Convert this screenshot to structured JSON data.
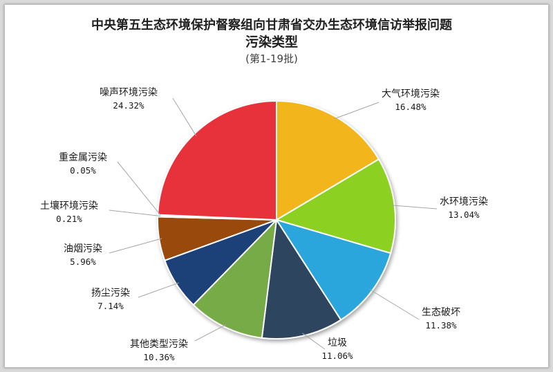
{
  "chart_data": {
    "type": "pie",
    "title": "中央第五生态环境保护督察组向甘肃省交办生态环境信访举报问题",
    "subtitle": "污染类型",
    "batch": "(第1-19批)",
    "slices": [
      {
        "name": "大气环境污染",
        "value": 16.48,
        "label": "16.48%",
        "color": "#f2b51c"
      },
      {
        "name": "水环境污染",
        "value": 13.04,
        "label": "13.04%",
        "color": "#8cd123"
      },
      {
        "name": "生态破坏",
        "value": 11.38,
        "label": "11.38%",
        "color": "#2aa6dc"
      },
      {
        "name": "垃圾",
        "value": 11.06,
        "label": "11.06%",
        "color": "#2d4560"
      },
      {
        "name": "其他类型污染",
        "value": 10.36,
        "label": "10.36%",
        "color": "#77ab46"
      },
      {
        "name": "扬尘污染",
        "value": 7.14,
        "label": "7.14%",
        "color": "#1f3f78"
      },
      {
        "name": "油烟污染",
        "value": 5.96,
        "label": "5.96%",
        "color": "#9a4a0c"
      },
      {
        "name": "土壤环境污染",
        "value": 0.21,
        "label": "0.21%",
        "color": "#d2d2d2"
      },
      {
        "name": "重金属污染",
        "value": 0.05,
        "label": "0.05%",
        "color": "#6a2a8a"
      },
      {
        "name": "噪声环境污染",
        "value": 24.32,
        "label": "24.32%",
        "color": "#e8303a"
      }
    ]
  }
}
